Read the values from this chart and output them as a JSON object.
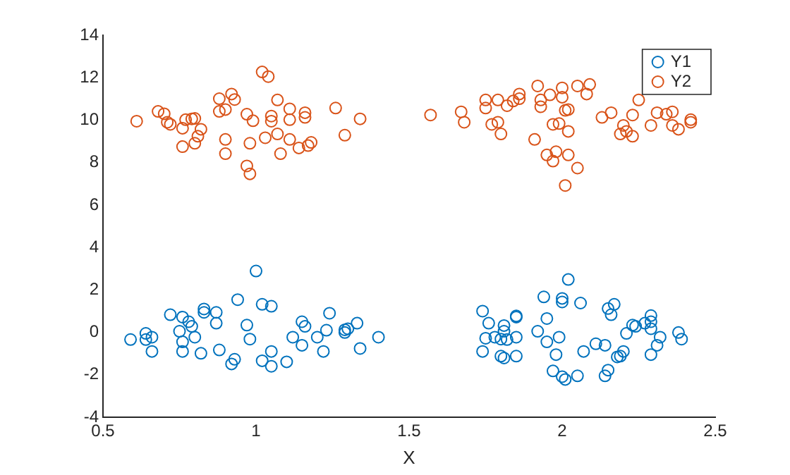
{
  "chart_data": {
    "type": "scatter",
    "xlabel": "X",
    "xlim": [
      0.5,
      2.5
    ],
    "xticks": [
      0.5,
      1,
      1.5,
      2,
      2.5
    ],
    "ylim": [
      -4,
      14
    ],
    "yticks": [
      -4,
      -2,
      0,
      2,
      4,
      6,
      8,
      10,
      12,
      14
    ],
    "grid": false,
    "legend": "top right",
    "marker": "circle",
    "series": [
      {
        "name": "Y1",
        "color": "#0072bd",
        "x": [
          0.59,
          0.64,
          0.64,
          0.66,
          0.66,
          0.72,
          0.75,
          0.76,
          0.76,
          0.76,
          0.78,
          0.79,
          0.8,
          0.82,
          0.83,
          0.83,
          0.87,
          0.87,
          0.88,
          0.92,
          0.93,
          0.94,
          0.97,
          0.98,
          1.0,
          1.02,
          1.05,
          1.05,
          1.02,
          1.05,
          1.1,
          1.12,
          1.15,
          1.16,
          1.15,
          1.2,
          1.22,
          1.23,
          1.24,
          1.29,
          1.29,
          1.3,
          1.33,
          1.34,
          1.4,
          1.74,
          1.74,
          1.75,
          1.76,
          1.78,
          1.8,
          1.81,
          1.8,
          1.81,
          1.81,
          1.82,
          1.85,
          1.85,
          1.85,
          1.85,
          1.92,
          1.94,
          1.95,
          1.95,
          1.97,
          1.98,
          1.99,
          2.0,
          2.0,
          2.0,
          2.01,
          2.02,
          2.05,
          2.06,
          2.07,
          2.11,
          2.14,
          2.14,
          2.15,
          2.15,
          2.16,
          2.17,
          2.18,
          2.19,
          2.2,
          2.21,
          2.23,
          2.24,
          2.27,
          2.29,
          2.29,
          2.29,
          2.29,
          2.31,
          2.32,
          2.38,
          2.39
        ],
        "values": [
          -0.34,
          -0.05,
          -0.34,
          -0.23,
          -0.9,
          0.83,
          0.05,
          0.72,
          -0.45,
          -0.9,
          0.5,
          0.28,
          -0.23,
          -0.99,
          1.1,
          0.94,
          0.94,
          0.43,
          -0.83,
          -1.49,
          -1.27,
          1.54,
          0.34,
          -0.32,
          2.89,
          1.32,
          1.23,
          -0.9,
          -1.34,
          -1.6,
          -1.39,
          -0.23,
          0.5,
          0.28,
          -0.61,
          -0.23,
          -0.9,
          0.1,
          0.9,
          -0.01,
          0.12,
          0.17,
          0.43,
          -0.76,
          -0.23,
          -0.9,
          1.0,
          -0.28,
          0.43,
          -0.23,
          -1.12,
          -1.21,
          -0.32,
          0.32,
          0.05,
          -0.34,
          -0.23,
          0.72,
          -1.12,
          0.77,
          0.05,
          1.67,
          0.65,
          -0.45,
          -1.82,
          -1.05,
          -0.23,
          1.6,
          1.43,
          -2.09,
          -2.22,
          2.49,
          -2.05,
          1.38,
          -0.9,
          -0.54,
          -0.61,
          -2.05,
          -1.78,
          1.12,
          0.83,
          1.32,
          -1.16,
          -1.12,
          -0.9,
          -0.05,
          0.34,
          0.28,
          0.43,
          0.79,
          0.5,
          0.17,
          -1.05,
          -0.61,
          -0.23,
          -0.01,
          -0.32
        ]
      },
      {
        "name": "Y2",
        "color": "#d95319",
        "x": [
          0.61,
          0.68,
          0.7,
          0.71,
          0.72,
          0.76,
          0.76,
          0.77,
          0.79,
          0.8,
          0.82,
          0.81,
          0.8,
          0.88,
          0.92,
          0.93,
          0.88,
          0.9,
          0.9,
          0.9,
          0.97,
          0.99,
          0.98,
          0.97,
          0.98,
          1.02,
          1.04,
          1.03,
          1.05,
          1.05,
          1.07,
          1.07,
          1.08,
          1.11,
          1.11,
          1.11,
          1.14,
          1.16,
          1.16,
          1.17,
          1.18,
          1.26,
          1.29,
          1.34,
          1.57,
          1.67,
          1.68,
          1.75,
          1.75,
          1.79,
          1.77,
          1.79,
          1.8,
          1.82,
          1.84,
          1.86,
          1.86,
          1.92,
          1.93,
          1.93,
          1.96,
          2.0,
          2.0,
          2.01,
          2.02,
          1.97,
          1.99,
          2.02,
          2.05,
          2.09,
          2.08,
          1.91,
          1.95,
          1.97,
          1.98,
          2.02,
          2.05,
          2.01,
          2.13,
          2.16,
          2.25,
          2.23,
          2.2,
          2.19,
          2.21,
          2.23,
          2.29,
          2.31,
          2.34,
          2.36,
          2.36,
          2.38,
          2.42,
          2.42
        ],
        "values": [
          9.95,
          10.41,
          10.3,
          9.9,
          9.8,
          9.62,
          8.75,
          10.02,
          10.06,
          10.08,
          9.57,
          9.24,
          8.91,
          11.01,
          11.23,
          10.97,
          10.41,
          10.5,
          9.09,
          8.42,
          10.28,
          9.97,
          8.91,
          7.84,
          7.47,
          12.27,
          12.05,
          9.17,
          10.19,
          9.95,
          10.95,
          9.35,
          8.42,
          10.02,
          10.53,
          9.09,
          8.69,
          10.35,
          10.13,
          8.8,
          8.95,
          10.57,
          9.29,
          10.06,
          10.24,
          10.39,
          9.9,
          10.95,
          10.57,
          10.95,
          9.8,
          9.9,
          9.35,
          10.68,
          10.9,
          11.23,
          11.01,
          11.61,
          10.95,
          10.63,
          11.19,
          11.52,
          11.08,
          10.46,
          10.5,
          9.8,
          9.84,
          9.47,
          11.61,
          11.68,
          11.23,
          9.09,
          8.36,
          8.07,
          8.51,
          8.36,
          7.74,
          6.92,
          10.13,
          10.35,
          10.95,
          10.24,
          9.75,
          9.35,
          9.47,
          9.24,
          9.75,
          10.35,
          10.28,
          10.39,
          9.75,
          9.57,
          10.02,
          9.9
        ]
      }
    ]
  }
}
